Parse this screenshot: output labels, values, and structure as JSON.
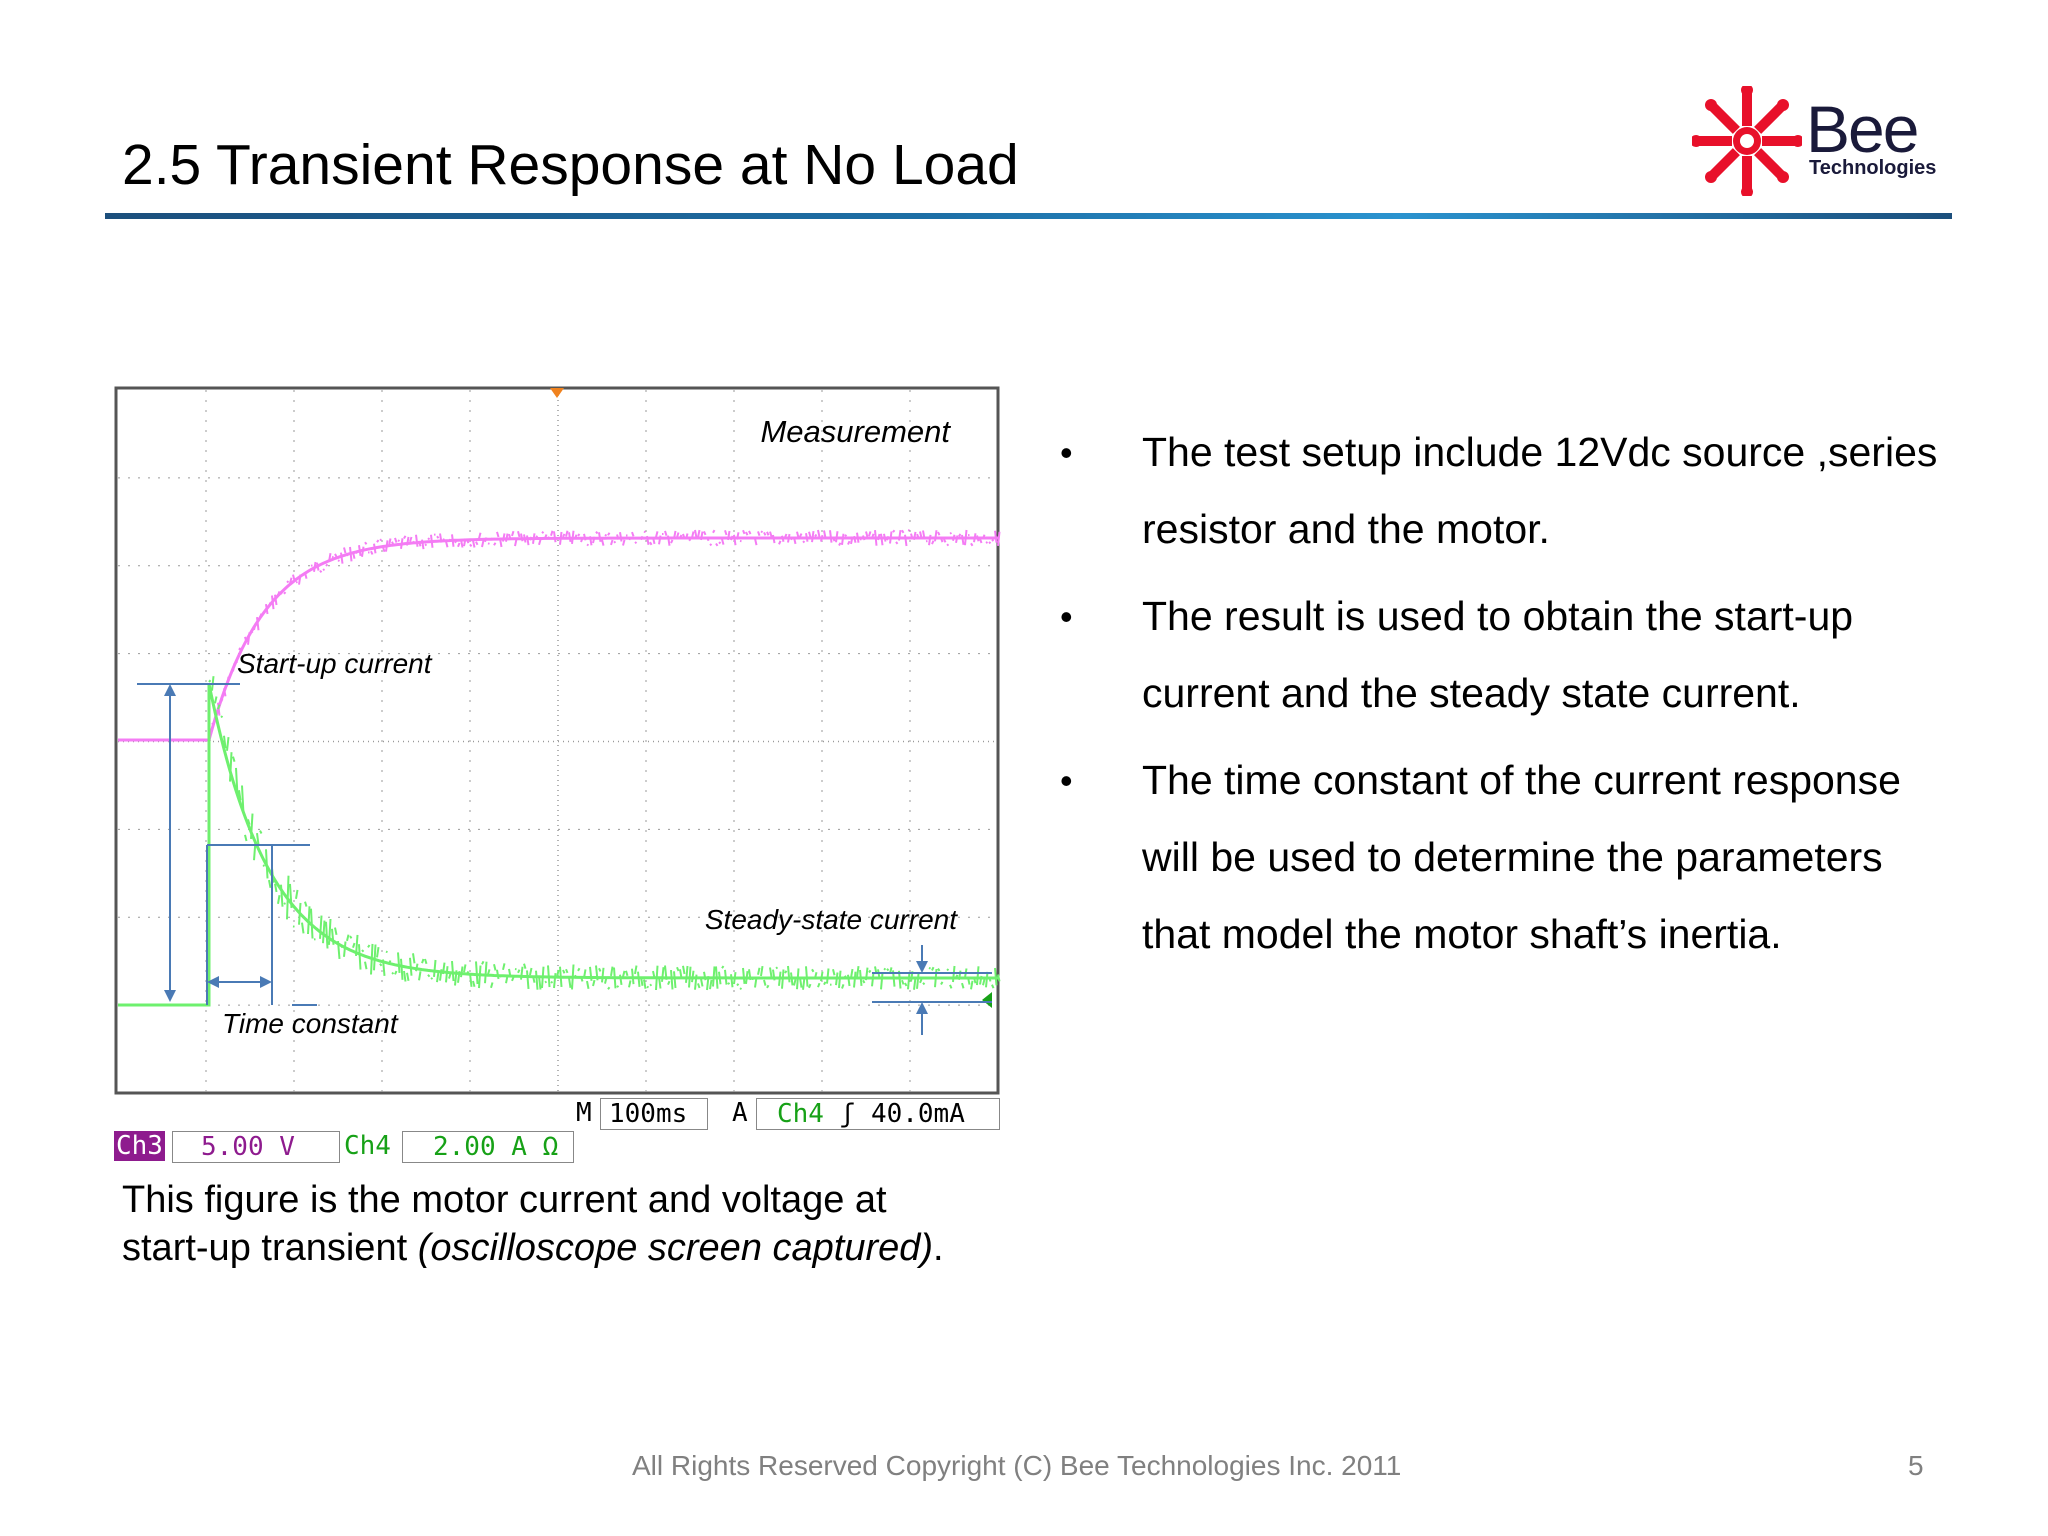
{
  "slide": {
    "title": "2.5 Transient Response at No Load",
    "page_number": "5",
    "footer": "All Rights Reserved Copyright (C) Bee Technologies Inc. 2011"
  },
  "logo": {
    "name": "Bee",
    "subtitle": "Technologies",
    "color": "#e8102a"
  },
  "scope": {
    "labels": {
      "measurement": "Measurement",
      "startup_current": "Start-up current",
      "steady_state_current": "Steady-state current",
      "time_constant": "Time constant"
    },
    "readouts": {
      "ch3_tag": "Ch3",
      "ch3_scale": "5.00 V",
      "ch4_tag": "Ch4",
      "ch4_scale": "2.00 A Ω",
      "m_tag": "M",
      "timebase": "100ms",
      "a_tag": "A",
      "trigger_source": "Ch4",
      "trigger_symbol": "ʃ",
      "trigger_level": "40.0mA"
    },
    "colors": {
      "voltage_trace": "#f47cf4",
      "current_trace": "#6ef06e",
      "annotation": "#4a7ab5",
      "trigger_marker": "#f0821e"
    }
  },
  "caption": {
    "line1": "This figure is the motor current and voltage at",
    "line2_start": "start-up transient ",
    "line2_italic": "(oscilloscope screen captured)",
    "line2_end": "."
  },
  "bullets": [
    {
      "marker": "•",
      "text": "The test setup include 12Vdc source ,series resistor and the motor."
    },
    {
      "marker": "•",
      "text": "The result is used to obtain the start-up current and the steady state current."
    },
    {
      "marker": "•",
      "text": "The time constant of the current response will be used to determine the parameters that model the motor shaft’s inertia."
    }
  ]
}
